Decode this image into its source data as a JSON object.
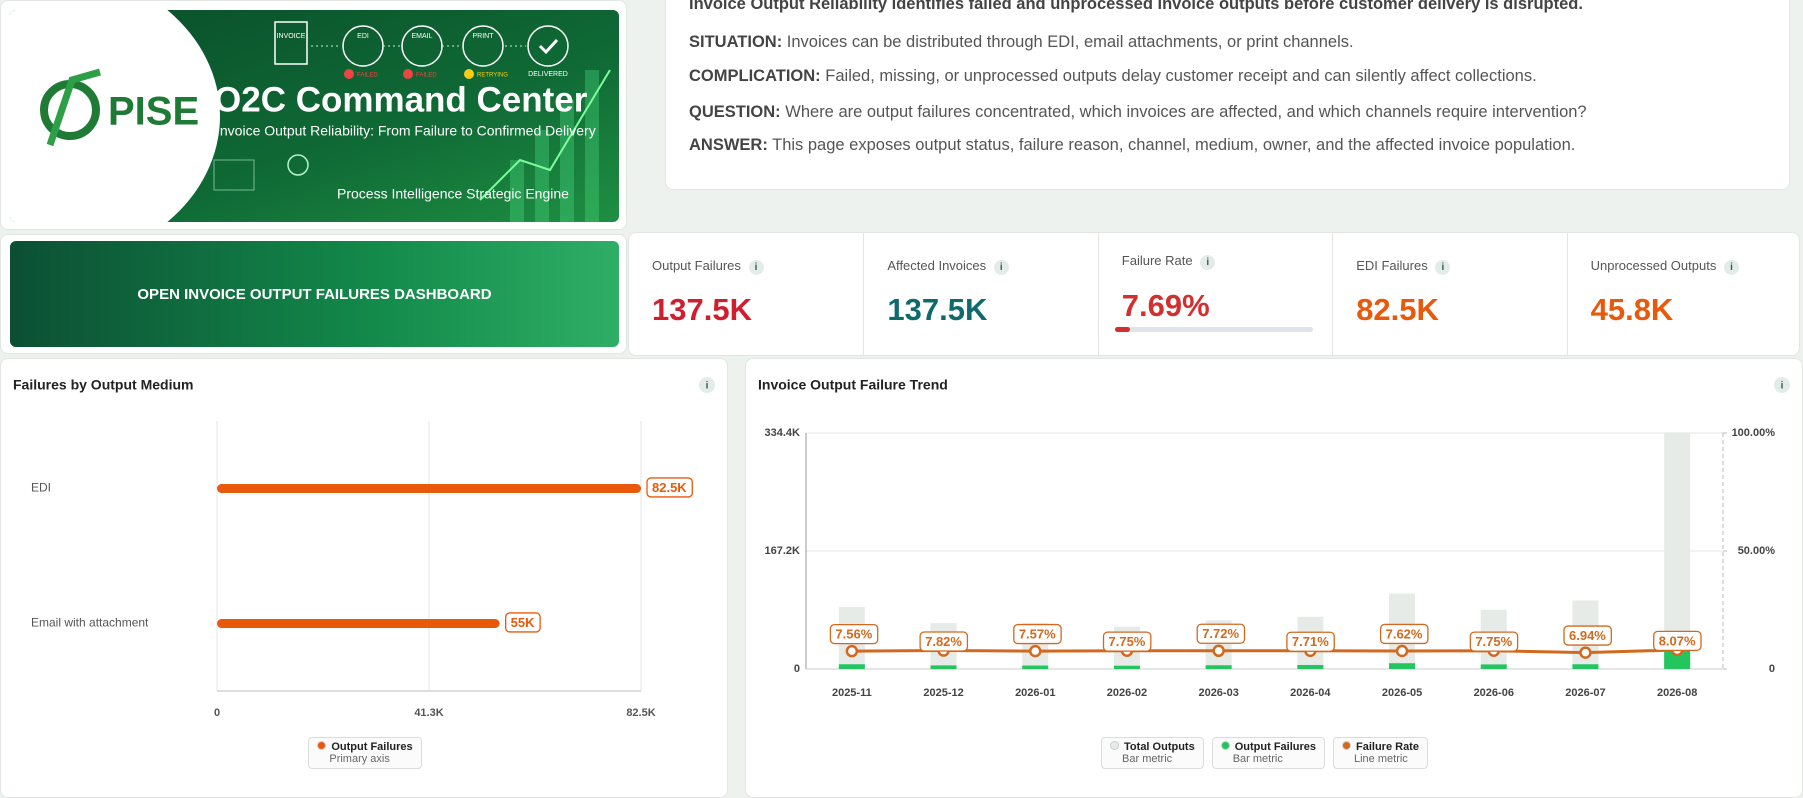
{
  "banner": {
    "logo": "PISE",
    "title": "O2C Command Center",
    "subtitle": "Invoice Output Reliability: From Failure to Confirmed Delivery",
    "tagline": "Process Intelligence Strategic Engine",
    "flow": [
      "INVOICE",
      "EDI",
      "EMAIL",
      "PRINT",
      "DELIVERED"
    ],
    "flow_status": [
      "FAILED",
      "FAILED",
      "RETRYING"
    ]
  },
  "button": "OPEN INVOICE OUTPUT FAILURES DASHBOARD",
  "narrative": {
    "intro": "Invoice Output Reliability identifies failed and unprocessed invoice outputs before customer delivery is disrupted.",
    "items": [
      {
        "label": "SITUATION:",
        "text": "Invoices can be distributed through EDI, email attachments, or print channels."
      },
      {
        "label": "COMPLICATION:",
        "text": "Failed, missing, or unprocessed outputs delay customer receipt and can silently affect collections."
      },
      {
        "label": "QUESTION:",
        "text": "Where are output failures concentrated, which invoices are affected, and which channels require intervention?"
      },
      {
        "label": "ANSWER:",
        "text": "This page exposes output status, failure reason, channel, medium, owner, and the affected invoice population."
      }
    ]
  },
  "info_icon": "i",
  "kpis": [
    {
      "label": "Output Failures",
      "value": "137.5K",
      "color": "#cf1f2e"
    },
    {
      "label": "Affected Invoices",
      "value": "137.5K",
      "color": "#0f6b6b"
    },
    {
      "label": "Failure Rate",
      "value": 7.69,
      "value_label": "7.69%",
      "color": "#d32f2f"
    },
    {
      "label": "EDI Failures",
      "value": "82.5K",
      "color": "#e8590c"
    },
    {
      "label": "Unprocessed Outputs",
      "value": "45.8K",
      "color": "#e8590c"
    }
  ],
  "chart_data": [
    {
      "type": "bar",
      "orientation": "horizontal",
      "title": "Failures by Output Medium",
      "categories": [
        "EDI",
        "Email with attachment"
      ],
      "series": [
        {
          "name": "Output Failures",
          "legend_note": "Primary axis",
          "color": "#e8590c",
          "values": [
            82500,
            55000
          ],
          "value_labels": [
            "82.5K",
            "55K"
          ]
        }
      ],
      "xlim": [
        0,
        82500
      ],
      "xticks": [
        0,
        {
          "value": 41250,
          "label": "41.3K"
        },
        {
          "value": 82500,
          "label": "82.5K"
        }
      ],
      "grid": true
    },
    {
      "type": "combo",
      "title": "Invoice Output Failure Trend",
      "categories": [
        "2025-11",
        "2025-12",
        "2026-01",
        "2026-02",
        "2026-03",
        "2026-04",
        "2026-05",
        "2026-06",
        "2026-07",
        "2026-08"
      ],
      "series": [
        {
          "name": "Total Outputs",
          "legend_note": "Bar metric",
          "type": "bar",
          "color": "#e6ebe8",
          "values": [
            88000,
            65000,
            65000,
            60000,
            69000,
            74000,
            107000,
            84000,
            97000,
            334000
          ]
        },
        {
          "name": "Output Failures",
          "legend_note": "Bar metric",
          "type": "bar",
          "color": "#22c55e",
          "values": [
            6700,
            5100,
            4900,
            4650,
            5300,
            5700,
            8200,
            6500,
            6700,
            27000
          ]
        },
        {
          "name": "Failure Rate",
          "legend_note": "Line metric",
          "type": "line",
          "axis": "y2",
          "color": "#d2691e",
          "values": [
            7.56,
            7.82,
            7.57,
            7.75,
            7.72,
            7.71,
            7.62,
            7.75,
            6.94,
            8.07
          ],
          "value_labels": [
            "7.56%",
            "7.82%",
            "7.57%",
            "7.75%",
            "7.72%",
            "7.71%",
            "7.62%",
            "7.75%",
            "6.94%",
            "8.07%"
          ]
        }
      ],
      "ylim": [
        0,
        334400
      ],
      "yticks": [
        0,
        {
          "value": 167200,
          "label": "167.2K"
        },
        {
          "value": 334400,
          "label": "334.4K"
        }
      ],
      "y2lim": [
        0,
        100
      ],
      "y2ticks": [
        0,
        {
          "value": 50,
          "label": "50.00%"
        },
        {
          "value": 100,
          "label": "100.00%"
        }
      ],
      "grid": true
    }
  ]
}
